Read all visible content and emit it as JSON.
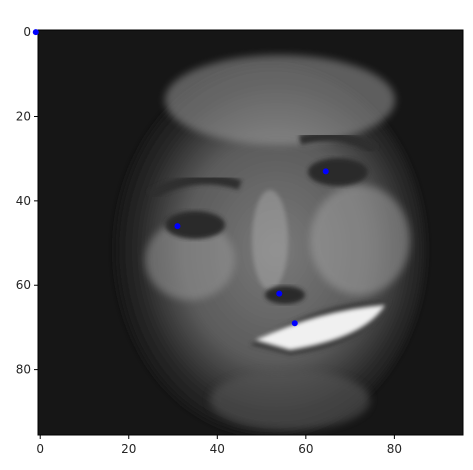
{
  "chart_data": {
    "type": "scatter",
    "description_of_background": "grayscale 96x96 image",
    "xlim": [
      -0.5,
      95.5
    ],
    "ylim": [
      95.5,
      -0.5
    ],
    "x_ticks": [
      0,
      20,
      40,
      60,
      80
    ],
    "y_ticks": [
      0,
      20,
      40,
      60,
      80
    ],
    "x_tick_labels": [
      "0",
      "20",
      "40",
      "60",
      "80"
    ],
    "y_tick_labels": [
      "0",
      "20",
      "40",
      "60",
      "80"
    ],
    "points": [
      {
        "x": -1,
        "y": 0
      },
      {
        "x": 64.5,
        "y": 33
      },
      {
        "x": 31,
        "y": 46
      },
      {
        "x": 54,
        "y": 62
      },
      {
        "x": 57.5,
        "y": 69
      }
    ],
    "point_color": "#0000ff",
    "grid": false
  },
  "colors": {
    "image_dark": "#141414",
    "image_mid": "#6a6a6a",
    "image_light": "#dcdcdc"
  }
}
